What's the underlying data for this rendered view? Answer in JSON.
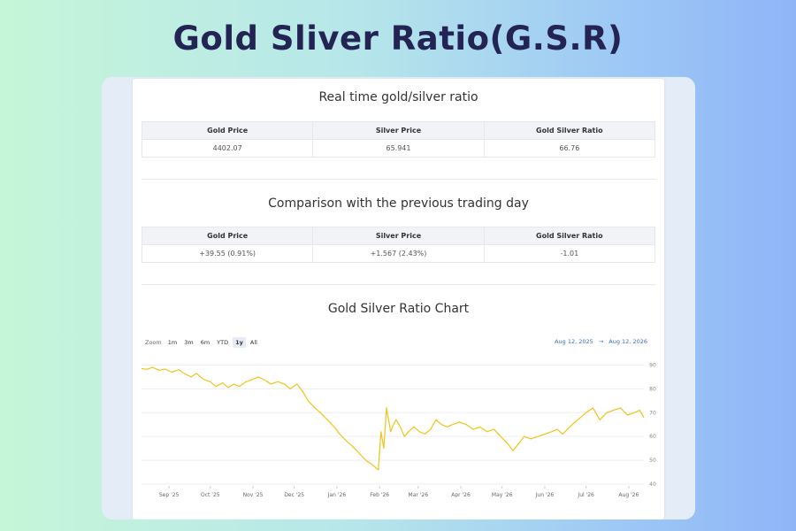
{
  "hero_title": "Gold Sliver Ratio(G.S.R)",
  "realtime": {
    "title": "Real time gold/silver ratio",
    "headers": [
      "Gold Price",
      "Silver Price",
      "Gold Silver Ratio"
    ],
    "values": [
      "4402.07",
      "65.941",
      "66.76"
    ]
  },
  "comparison": {
    "title": "Comparison with the previous trading day",
    "headers": [
      "Gold Price",
      "Silver Price",
      "Gold Silver Ratio"
    ],
    "values": [
      "+39.55 (0.91%)",
      "+1.567 (2.43%)",
      "-1.01"
    ],
    "colors": {
      "positive": "#2fae6a",
      "negative": "#e69137"
    }
  },
  "chart_section": {
    "title": "Gold Silver Ratio Chart",
    "zoom_label": "Zoom",
    "zoom_buttons": [
      "1m",
      "3m",
      "6m",
      "YTD",
      "1y",
      "All"
    ],
    "active_zoom": "1y",
    "range_from": "Aug 12, 2025",
    "range_arrow": "→",
    "range_to": "Aug 12, 2026"
  },
  "chart_data": {
    "type": "line",
    "line_color": "#f0c419",
    "grid": true,
    "x_ticks": [
      "Sep '25",
      "Oct '25",
      "Nov '25",
      "Dec '25",
      "Jan '26",
      "Feb '26",
      "Mar '26",
      "Apr '26",
      "May '26",
      "Jun '26",
      "Jul '26",
      "Aug '26"
    ],
    "y_ticks": [
      40,
      50,
      60,
      70,
      80,
      90
    ],
    "ylim": [
      40,
      95
    ],
    "series": [
      {
        "x": [
          "2025-08-12",
          "2025-08-16",
          "2025-08-20",
          "2025-08-25",
          "2025-08-29",
          "2025-09-03",
          "2025-09-08",
          "2025-09-12",
          "2025-09-17",
          "2025-09-21",
          "2025-09-26",
          "2025-10-01",
          "2025-10-05",
          "2025-10-10",
          "2025-10-14",
          "2025-10-18",
          "2025-10-22",
          "2025-10-27",
          "2025-11-01",
          "2025-11-05",
          "2025-11-10",
          "2025-11-14",
          "2025-11-19",
          "2025-11-24",
          "2025-11-28",
          "2025-12-03",
          "2025-12-07",
          "2025-12-11",
          "2025-12-16",
          "2025-12-20",
          "2025-12-25",
          "2025-12-30",
          "2026-01-03",
          "2026-01-08",
          "2026-01-12",
          "2026-01-17",
          "2026-01-22",
          "2026-01-27",
          "2026-01-31",
          "2026-02-02",
          "2026-02-04",
          "2026-02-06",
          "2026-02-09",
          "2026-02-11",
          "2026-02-13",
          "2026-02-16",
          "2026-02-19",
          "2026-02-22",
          "2026-02-26",
          "2026-03-02",
          "2026-03-06",
          "2026-03-10",
          "2026-03-14",
          "2026-03-18",
          "2026-03-22",
          "2026-03-26",
          "2026-03-31",
          "2026-04-05",
          "2026-04-10",
          "2026-04-15",
          "2026-04-20",
          "2026-04-25",
          "2026-04-30",
          "2026-05-05",
          "2026-05-09",
          "2026-05-13",
          "2026-05-17",
          "2026-05-22",
          "2026-05-27",
          "2026-06-01",
          "2026-06-06",
          "2026-06-10",
          "2026-06-14",
          "2026-06-19",
          "2026-06-23",
          "2026-06-27",
          "2026-07-01",
          "2026-07-06",
          "2026-07-11",
          "2026-07-16",
          "2026-07-21",
          "2026-07-26",
          "2026-07-31",
          "2026-08-05",
          "2026-08-09",
          "2026-08-12"
        ],
        "values": [
          88.5,
          88.2,
          89,
          87.8,
          88.3,
          87,
          88,
          86.5,
          85,
          86.5,
          84,
          83,
          81,
          82.5,
          80.5,
          82,
          81,
          83,
          84,
          85,
          83.5,
          82,
          83,
          82,
          80,
          82,
          79,
          75,
          72,
          70,
          67,
          64,
          61,
          58,
          56,
          53,
          50,
          48,
          46,
          62,
          55,
          72,
          62,
          65,
          67,
          64,
          60,
          62,
          64,
          62,
          61,
          63,
          67,
          65,
          64,
          65,
          66,
          65,
          63,
          64,
          62,
          63,
          60,
          57,
          54,
          57,
          60,
          59,
          60,
          61,
          62,
          63,
          61,
          64,
          66,
          68,
          70,
          72,
          67,
          70,
          71,
          72,
          69,
          70,
          71,
          68
        ]
      }
    ]
  }
}
